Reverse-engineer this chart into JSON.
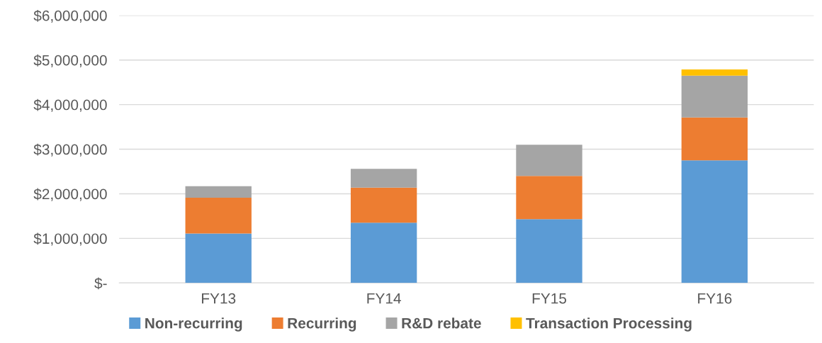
{
  "chart_data": {
    "type": "bar",
    "stacked": true,
    "categories": [
      "FY13",
      "FY14",
      "FY15",
      "FY16"
    ],
    "series": [
      {
        "name": "Non-recurring",
        "color": "#5b9bd5",
        "values": [
          1110000,
          1350000,
          1430000,
          2750000
        ]
      },
      {
        "name": "Recurring",
        "color": "#ed7d31",
        "values": [
          800000,
          790000,
          970000,
          960000
        ]
      },
      {
        "name": "R&D rebate",
        "color": "#a5a5a5",
        "values": [
          260000,
          420000,
          700000,
          940000
        ]
      },
      {
        "name": "Transaction Processing",
        "color": "#ffc000",
        "values": [
          0,
          0,
          0,
          140000
        ]
      }
    ],
    "ylim": [
      0,
      6000000
    ],
    "yticks": [
      {
        "value": 0,
        "label": "$-"
      },
      {
        "value": 1000000,
        "label": "$1,000,000"
      },
      {
        "value": 2000000,
        "label": "$2,000,000"
      },
      {
        "value": 3000000,
        "label": "$3,000,000"
      },
      {
        "value": 4000000,
        "label": "$4,000,000"
      },
      {
        "value": 5000000,
        "label": "$5,000,000"
      },
      {
        "value": 6000000,
        "label": "$6,000,000"
      }
    ],
    "grid": "y",
    "legend": "bottom"
  }
}
